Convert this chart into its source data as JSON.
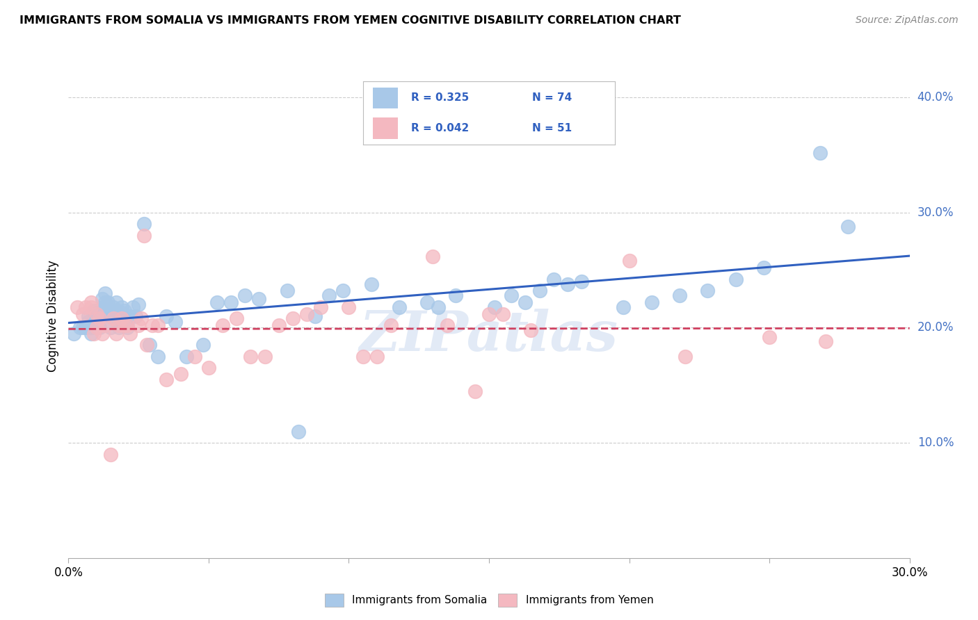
{
  "title": "IMMIGRANTS FROM SOMALIA VS IMMIGRANTS FROM YEMEN COGNITIVE DISABILITY CORRELATION CHART",
  "source": "Source: ZipAtlas.com",
  "ylabel": "Cognitive Disability",
  "xlim": [
    0.0,
    0.3
  ],
  "ylim": [
    0.0,
    0.42
  ],
  "xticks": [
    0.0,
    0.05,
    0.1,
    0.15,
    0.2,
    0.25,
    0.3
  ],
  "yticks": [
    0.0,
    0.1,
    0.2,
    0.3,
    0.4
  ],
  "somalia_R": 0.325,
  "somalia_N": 74,
  "yemen_R": 0.042,
  "yemen_N": 51,
  "somalia_color": "#a8c8e8",
  "yemen_color": "#f4b8c0",
  "somalia_line_color": "#3060c0",
  "yemen_line_color": "#d04060",
  "watermark": "ZIPatlas",
  "legend_somalia": "Immigrants from Somalia",
  "legend_yemen": "Immigrants from Yemen",
  "somalia_x": [
    0.002,
    0.004,
    0.005,
    0.006,
    0.007,
    0.007,
    0.008,
    0.008,
    0.009,
    0.009,
    0.01,
    0.01,
    0.011,
    0.011,
    0.012,
    0.012,
    0.013,
    0.013,
    0.013,
    0.014,
    0.014,
    0.015,
    0.015,
    0.016,
    0.016,
    0.017,
    0.017,
    0.018,
    0.018,
    0.019,
    0.019,
    0.02,
    0.02,
    0.021,
    0.022,
    0.023,
    0.024,
    0.025,
    0.027,
    0.029,
    0.032,
    0.035,
    0.038,
    0.042,
    0.048,
    0.053,
    0.058,
    0.063,
    0.068,
    0.078,
    0.082,
    0.088,
    0.093,
    0.098,
    0.108,
    0.118,
    0.128,
    0.132,
    0.138,
    0.152,
    0.158,
    0.163,
    0.168,
    0.173,
    0.178,
    0.183,
    0.198,
    0.208,
    0.218,
    0.228,
    0.238,
    0.248,
    0.268,
    0.278
  ],
  "somalia_y": [
    0.195,
    0.2,
    0.2,
    0.2,
    0.205,
    0.21,
    0.195,
    0.2,
    0.205,
    0.215,
    0.2,
    0.215,
    0.2,
    0.213,
    0.218,
    0.225,
    0.215,
    0.222,
    0.23,
    0.215,
    0.222,
    0.2,
    0.21,
    0.213,
    0.218,
    0.215,
    0.222,
    0.2,
    0.21,
    0.213,
    0.218,
    0.205,
    0.215,
    0.2,
    0.21,
    0.218,
    0.21,
    0.22,
    0.29,
    0.185,
    0.175,
    0.21,
    0.205,
    0.175,
    0.185,
    0.222,
    0.222,
    0.228,
    0.225,
    0.232,
    0.11,
    0.21,
    0.228,
    0.232,
    0.238,
    0.218,
    0.222,
    0.218,
    0.228,
    0.218,
    0.228,
    0.222,
    0.232,
    0.242,
    0.238,
    0.24,
    0.218,
    0.222,
    0.228,
    0.232,
    0.242,
    0.252,
    0.352,
    0.288
  ],
  "yemen_x": [
    0.003,
    0.005,
    0.006,
    0.008,
    0.008,
    0.009,
    0.01,
    0.01,
    0.011,
    0.012,
    0.013,
    0.015,
    0.016,
    0.017,
    0.018,
    0.019,
    0.02,
    0.021,
    0.022,
    0.025,
    0.026,
    0.027,
    0.028,
    0.03,
    0.032,
    0.035,
    0.04,
    0.045,
    0.05,
    0.055,
    0.06,
    0.065,
    0.07,
    0.075,
    0.08,
    0.085,
    0.09,
    0.1,
    0.105,
    0.11,
    0.115,
    0.13,
    0.135,
    0.145,
    0.15,
    0.155,
    0.165,
    0.2,
    0.22,
    0.25,
    0.27
  ],
  "yemen_y": [
    0.218,
    0.212,
    0.218,
    0.218,
    0.222,
    0.195,
    0.2,
    0.212,
    0.208,
    0.195,
    0.202,
    0.09,
    0.208,
    0.195,
    0.202,
    0.208,
    0.202,
    0.202,
    0.195,
    0.202,
    0.208,
    0.28,
    0.185,
    0.202,
    0.202,
    0.155,
    0.16,
    0.175,
    0.165,
    0.202,
    0.208,
    0.175,
    0.175,
    0.202,
    0.208,
    0.212,
    0.218,
    0.218,
    0.175,
    0.175,
    0.202,
    0.262,
    0.202,
    0.145,
    0.212,
    0.212,
    0.198,
    0.258,
    0.175,
    0.192,
    0.188
  ]
}
